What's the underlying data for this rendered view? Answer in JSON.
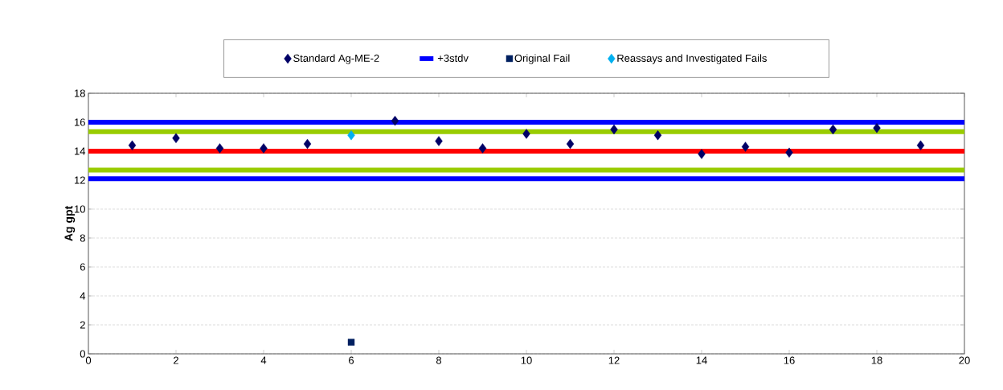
{
  "chart_data": {
    "type": "scatter",
    "ylabel": "Ag gpt",
    "xlim": [
      0,
      20
    ],
    "xticks": [
      0,
      2,
      4,
      6,
      8,
      10,
      12,
      14,
      16,
      18,
      20
    ],
    "ylim": [
      0,
      18
    ],
    "yticks": [
      0,
      2,
      4,
      6,
      8,
      10,
      12,
      14,
      16,
      18
    ],
    "grid": "y",
    "legend": "top",
    "series": [
      {
        "name": "Standard Ag-ME-2",
        "marker": "diamond",
        "color": "#000066",
        "x": [
          1,
          2,
          3,
          4,
          5,
          7,
          8,
          9,
          10,
          11,
          12,
          13,
          14,
          15,
          16,
          17,
          18,
          19
        ],
        "values": [
          14.4,
          14.9,
          14.2,
          14.2,
          14.5,
          16.1,
          14.7,
          14.2,
          15.2,
          14.5,
          15.5,
          15.1,
          13.8,
          14.3,
          13.9,
          15.5,
          15.6,
          14.4
        ]
      },
      {
        "name": "+3stdv",
        "type": "line",
        "color": "#0000ff",
        "x": [
          0,
          20
        ],
        "values": [
          16,
          16
        ]
      },
      {
        "name": "Original Fail",
        "marker": "square",
        "color": "#002060",
        "x": [
          6
        ],
        "values": [
          0.8
        ]
      },
      {
        "name": "Reassays and Investigated Fails",
        "marker": "diamond",
        "color": "#00b0f0",
        "x": [
          6
        ],
        "values": [
          15.1
        ]
      }
    ],
    "ref_lines": [
      {
        "axis": "y",
        "value": 12.1,
        "color": "#0000ff"
      },
      {
        "axis": "y",
        "value": 15.35,
        "color": "#99cc00"
      },
      {
        "axis": "y",
        "value": 12.7,
        "color": "#99cc00"
      },
      {
        "axis": "y",
        "value": 14,
        "color": "#ff0000"
      }
    ]
  }
}
